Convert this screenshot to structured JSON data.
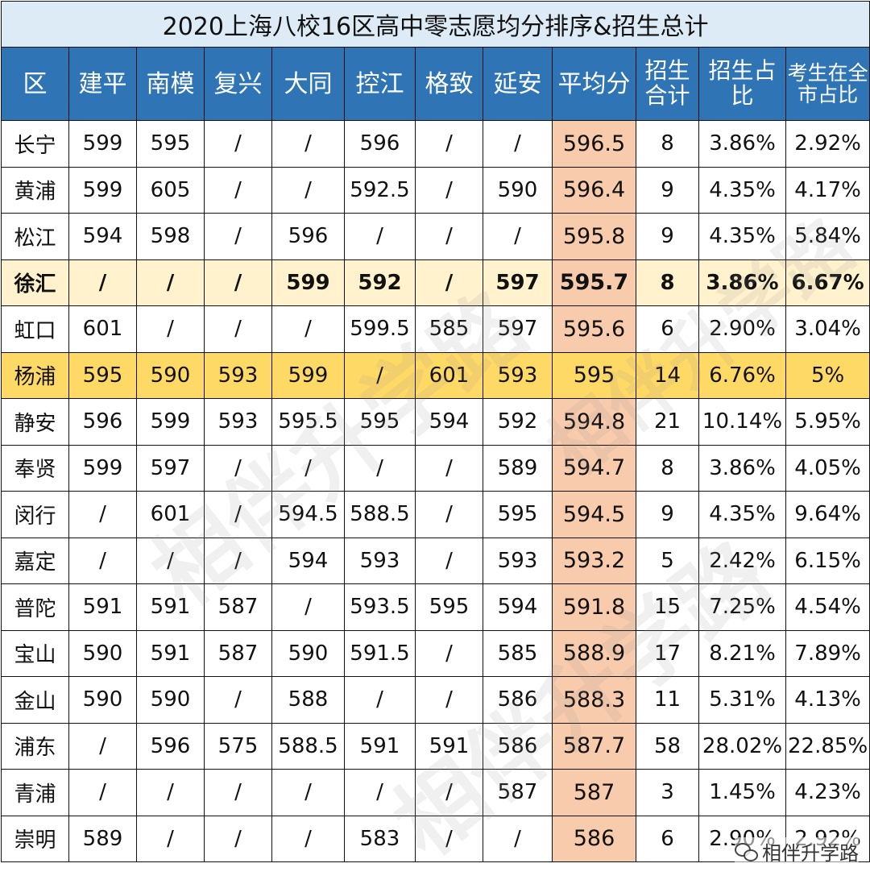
{
  "title": "2020上海八校16区高中零志愿均分排序&招生总计",
  "headers": [
    "区",
    "建平",
    "南模",
    "复兴",
    "大同",
    "控江",
    "格致",
    "延安",
    "平均分",
    "招生合计",
    "招生占比",
    "考生在全市占比"
  ],
  "rows": [
    {
      "cells": [
        "长宁",
        "599",
        "595",
        "/",
        "/",
        "596",
        "/",
        "/",
        "596.5",
        "8",
        "3.86%",
        "2.92%"
      ]
    },
    {
      "cells": [
        "黄浦",
        "599",
        "605",
        "/",
        "/",
        "592.5",
        "/",
        "590",
        "596.4",
        "9",
        "4.35%",
        "4.17%"
      ]
    },
    {
      "cells": [
        "松江",
        "594",
        "598",
        "/",
        "596",
        "/",
        "/",
        "/",
        "595.8",
        "9",
        "4.35%",
        "5.84%"
      ]
    },
    {
      "cells": [
        "徐汇",
        "/",
        "/",
        "/",
        "599",
        "592",
        "/",
        "597",
        "595.7",
        "8",
        "3.86%",
        "6.67%"
      ],
      "highlight": "light"
    },
    {
      "cells": [
        "虹口",
        "601",
        "/",
        "/",
        "/",
        "599.5",
        "585",
        "597",
        "595.6",
        "6",
        "2.90%",
        "3.04%"
      ]
    },
    {
      "cells": [
        "杨浦",
        "595",
        "590",
        "593",
        "599",
        "/",
        "601",
        "593",
        "595",
        "14",
        "6.76%",
        "5%"
      ],
      "highlight": "strong"
    },
    {
      "cells": [
        "静安",
        "596",
        "599",
        "593",
        "595.5",
        "595",
        "594",
        "592",
        "594.8",
        "21",
        "10.14%",
        "5.95%"
      ]
    },
    {
      "cells": [
        "奉贤",
        "599",
        "597",
        "/",
        "/",
        "/",
        "/",
        "589",
        "594.7",
        "8",
        "3.86%",
        "4.05%"
      ]
    },
    {
      "cells": [
        "闵行",
        "/",
        "601",
        "/",
        "594.5",
        "588.5",
        "/",
        "595",
        "594.5",
        "9",
        "4.35%",
        "9.64%"
      ]
    },
    {
      "cells": [
        "嘉定",
        "/",
        "/",
        "/",
        "594",
        "593",
        "/",
        "593",
        "593.2",
        "5",
        "2.42%",
        "6.15%"
      ]
    },
    {
      "cells": [
        "普陀",
        "591",
        "591",
        "587",
        "/",
        "593.5",
        "595",
        "594",
        "591.8",
        "15",
        "7.25%",
        "4.54%"
      ]
    },
    {
      "cells": [
        "宝山",
        "590",
        "591",
        "587",
        "590",
        "591.5",
        "/",
        "585",
        "588.9",
        "17",
        "8.21%",
        "7.89%"
      ]
    },
    {
      "cells": [
        "金山",
        "590",
        "590",
        "/",
        "588",
        "/",
        "/",
        "586",
        "588.3",
        "11",
        "5.31%",
        "4.13%"
      ]
    },
    {
      "cells": [
        "浦东",
        "/",
        "596",
        "575",
        "588.5",
        "591",
        "591",
        "586",
        "587.7",
        "58",
        "28.02%",
        "22.85%"
      ]
    },
    {
      "cells": [
        "青浦",
        "/",
        "/",
        "/",
        "/",
        "/",
        "/",
        "587",
        "587",
        "3",
        "1.45%",
        "4.23%"
      ]
    },
    {
      "cells": [
        "崇明",
        "589",
        "/",
        "/",
        "/",
        "583",
        "/",
        "/",
        "586",
        "6",
        "2.90%",
        "2.92%"
      ]
    }
  ],
  "watermark": "相伴升学路",
  "brand": {
    "icon": "wechat-icon",
    "label": "相伴升学路"
  },
  "colors": {
    "header_bg": "#2f75b5",
    "title_bg": "#ddebf7",
    "avg_bg": "#f8cbad",
    "highlight_light": "#fff2cc",
    "highlight_strong": "#ffd966"
  }
}
